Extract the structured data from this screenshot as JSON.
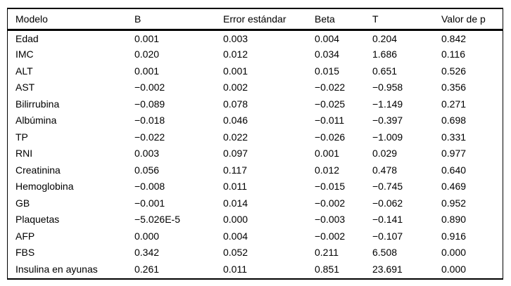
{
  "table": {
    "columns": [
      {
        "key": "modelo",
        "label": "Modelo"
      },
      {
        "key": "b",
        "label": "B"
      },
      {
        "key": "error_estandar",
        "label": "Error estándar"
      },
      {
        "key": "beta",
        "label": "Beta"
      },
      {
        "key": "t",
        "label": "T"
      },
      {
        "key": "valor_de_p",
        "label": "Valor de p"
      }
    ],
    "rows": [
      [
        "Edad",
        "0.001",
        "0.003",
        "0.004",
        "0.204",
        "0.842"
      ],
      [
        "IMC",
        "0.020",
        "0.012",
        "0.034",
        "1.686",
        "0.116"
      ],
      [
        "ALT",
        "0.001",
        "0.001",
        "0.015",
        "0.651",
        "0.526"
      ],
      [
        "AST",
        "−0.002",
        "0.002",
        "−0.022",
        "−0.958",
        "0.356"
      ],
      [
        "Bilirrubina",
        "−0.089",
        "0.078",
        "−0.025",
        "−1.149",
        "0.271"
      ],
      [
        "Albúmina",
        "−0.018",
        "0.046",
        "−0.011",
        "−0.397",
        "0.698"
      ],
      [
        "TP",
        "−0.022",
        "0.022",
        "−0.026",
        "−1.009",
        "0.331"
      ],
      [
        "RNI",
        "0.003",
        "0.097",
        "0.001",
        "0.029",
        "0.977"
      ],
      [
        "Creatinina",
        "0.056",
        "0.117",
        "0.012",
        "0.478",
        "0.640"
      ],
      [
        "Hemoglobina",
        "−0.008",
        "0.011",
        "−0.015",
        "−0.745",
        "0.469"
      ],
      [
        "GB",
        "−0.001",
        "0.014",
        "−0.002",
        "−0.062",
        "0.952"
      ],
      [
        "Plaquetas",
        "−5.026E-5",
        "0.000",
        "−0.003",
        "−0.141",
        "0.890"
      ],
      [
        "AFP",
        "0.000",
        "0.004",
        "−0.002",
        "−0.107",
        "0.916"
      ],
      [
        "FBS",
        "0.342",
        "0.052",
        "0.211",
        "6.508",
        "0.000"
      ],
      [
        "Insulina en ayunas",
        "0.261",
        "0.011",
        "0.851",
        "23.691",
        "0.000"
      ]
    ],
    "border_color": "#000000",
    "background_color": "#ffffff",
    "text_color": "#000000"
  }
}
